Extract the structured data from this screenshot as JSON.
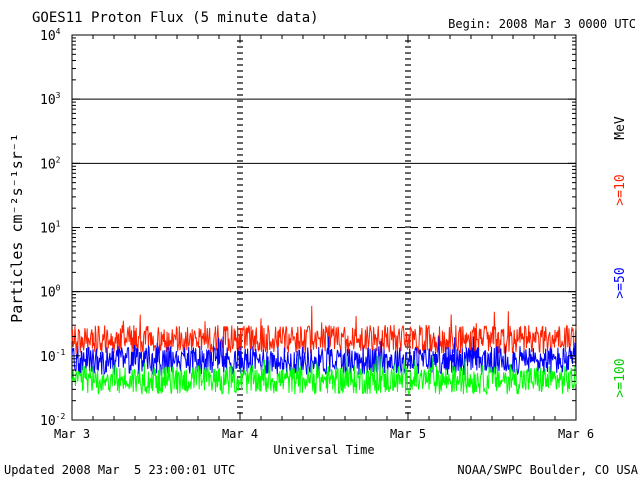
{
  "header": {
    "title": "GOES11 Proton Flux (5 minute data)",
    "begin": "Begin: 2008 Mar 3 0000 UTC"
  },
  "footer": {
    "updated": "Updated 2008 Mar  5 23:00:01 UTC",
    "source": "NOAA/SWPC Boulder, CO USA"
  },
  "chart_data": {
    "type": "line",
    "title": "GOES11 Proton Flux (5 minute data)",
    "xlabel": "Universal Time",
    "ylabel": "Particles cm⁻²s⁻¹sr⁻¹",
    "yscale": "log",
    "ylim": [
      0.01,
      10000
    ],
    "xlim": [
      "2008-03-03",
      "2008-03-06"
    ],
    "x_ticks": [
      "Mar 3",
      "Mar 4",
      "Mar 5",
      "Mar 6"
    ],
    "y_ticks": [
      {
        "base": "10",
        "exp": "-2"
      },
      {
        "base": "10",
        "exp": "-1"
      },
      {
        "base": "10",
        "exp": "0"
      },
      {
        "base": "10",
        "exp": "1"
      },
      {
        "base": "10",
        "exp": "2"
      },
      {
        "base": "10",
        "exp": "3"
      },
      {
        "base": "10",
        "exp": "4"
      }
    ],
    "unit_label": "MeV",
    "grid": {
      "solid": [
        1,
        100,
        1000
      ],
      "dashed": [
        10
      ]
    },
    "series": [
      {
        "name": ">=10",
        "color": "#ff2000",
        "baseline": 0.17,
        "min": 0.1,
        "max": 0.6
      },
      {
        "name": ">=50",
        "color": "#0000ff",
        "baseline": 0.08,
        "min": 0.045,
        "max": 0.2
      },
      {
        "name": ">=100",
        "color": "#00ff00",
        "baseline": 0.04,
        "min": 0.022,
        "max": 0.1
      }
    ]
  }
}
